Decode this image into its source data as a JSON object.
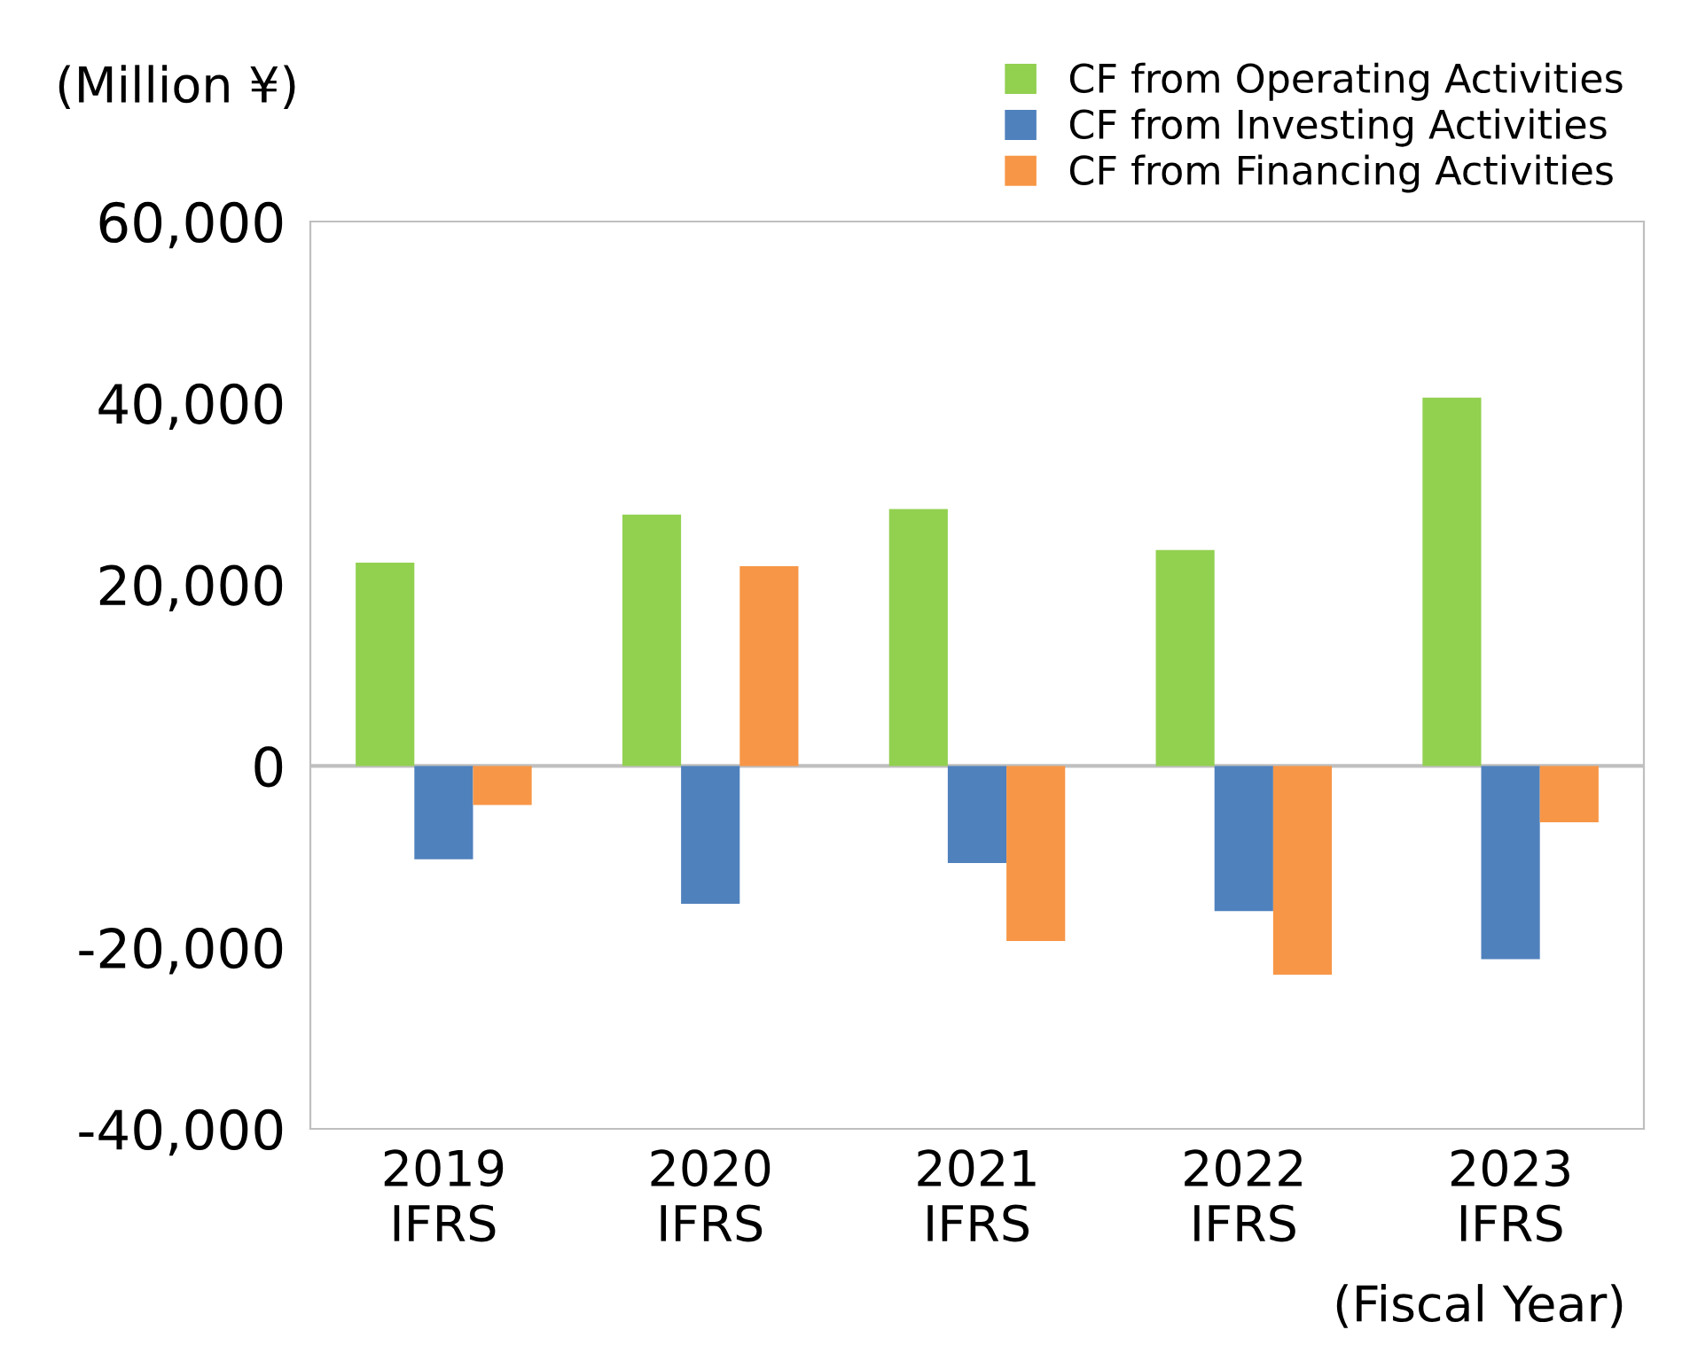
{
  "chart_data": {
    "type": "bar",
    "ylabel": "(Million ¥)",
    "categories": [
      "2019\nIFRS",
      "2020\nIFRS",
      "2021\nIFRS",
      "2022\nIFRS",
      "2023\nIFRS"
    ],
    "series": [
      {
        "name": "CF from Operating Activities",
        "color": "#92d050",
        "values": [
          22400,
          27700,
          28300,
          23800,
          40600
        ]
      },
      {
        "name": "CF from Investing Activities",
        "color": "#4f81bd",
        "values": [
          -10300,
          -15200,
          -10700,
          -16000,
          -21300
        ]
      },
      {
        "name": "CF from Financing Activities",
        "color": "#f79646",
        "values": [
          -4300,
          22000,
          -19300,
          -23000,
          -6200
        ]
      }
    ],
    "ylim": [
      -40000,
      60000
    ],
    "yticks": [
      {
        "value": -40000,
        "label": "-40,000"
      },
      {
        "value": -20000,
        "label": "-20,000"
      },
      {
        "value": 0,
        "label": "0"
      },
      {
        "value": 20000,
        "label": "20,000"
      },
      {
        "value": 40000,
        "label": "40,000"
      },
      {
        "value": 60000,
        "label": "60,000"
      }
    ],
    "ref_lines": [
      {
        "axis": "y",
        "value": 0,
        "color": "#bfbfbf"
      }
    ],
    "legend": "top right",
    "grid": false,
    "annotations": [
      "(Fiscal Year)"
    ]
  }
}
